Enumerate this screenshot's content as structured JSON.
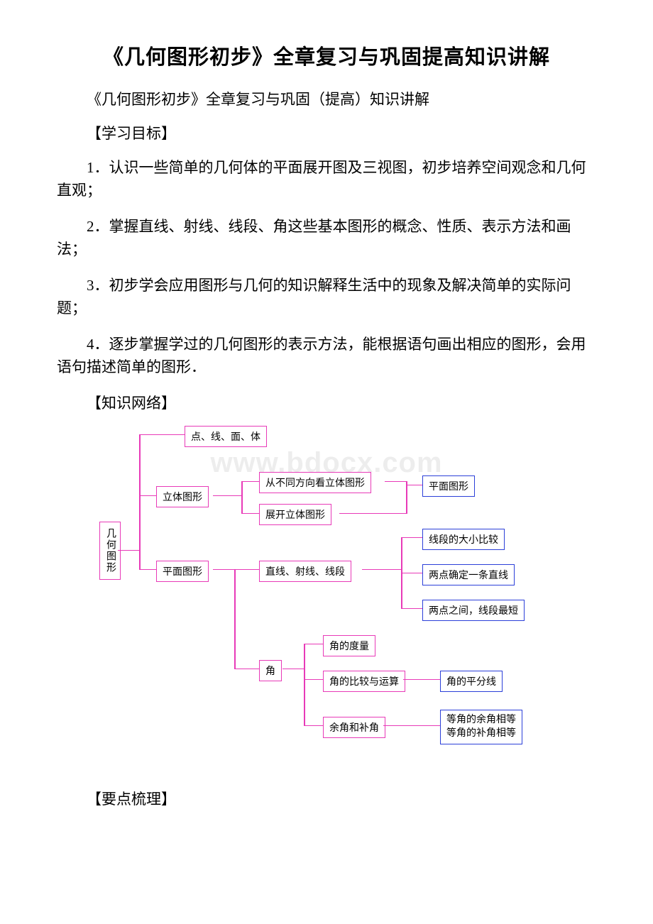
{
  "title": "《几何图形初步》全章复习与巩固提高知识讲解",
  "subtitle": "《几何图形初步》全章复习与巩固（提高）知识讲解",
  "section_objectives_heading": "【学习目标】",
  "objectives": [
    "1．认识一些简单的几何体的平面展开图及三视图，初步培养空间观念和几何直观；",
    "2．掌握直线、射线、线段、角这些基本图形的概念、性质、表示方法和画法；",
    "3．初步学会应用图形与几何的知识解释生活中的现象及解决简单的实际问题；",
    "4．逐步掌握学过的几何图形的表示方法，能根据语句画出相应的图形，会用语句描述简单的图形．"
  ],
  "section_network_heading": "【知识网络】",
  "section_points_heading": "【要点梳理】",
  "watermark_text": "www.bdocx.com",
  "diagram": {
    "colors": {
      "magenta": "#e83ab8",
      "blue": "#2b3fd9",
      "line": "#e83ab8"
    },
    "nodes": {
      "root": {
        "label": "几何图形",
        "vertical": true,
        "color": "magenta"
      },
      "n1": {
        "label": "点、线、面、体",
        "color": "magenta"
      },
      "n2": {
        "label": "立体图形",
        "color": "magenta"
      },
      "n3": {
        "label": "平面图形",
        "color": "magenta"
      },
      "n4": {
        "label": "角",
        "color": "magenta"
      },
      "n2a": {
        "label": "从不同方向看立体图形",
        "color": "magenta"
      },
      "n2b": {
        "label": "展开立体图形",
        "color": "magenta"
      },
      "n2r": {
        "label": "平面图形",
        "color": "blue"
      },
      "n3a": {
        "label": "直线、射线、线段",
        "color": "magenta"
      },
      "n3r1": {
        "label": "线段的大小比较",
        "color": "blue"
      },
      "n3r2": {
        "label": "两点确定一条直线",
        "color": "blue"
      },
      "n3r3": {
        "label": "两点之间，线段最短",
        "color": "blue"
      },
      "n4a": {
        "label": "角的度量",
        "color": "magenta"
      },
      "n4b": {
        "label": "角的比较与运算",
        "color": "magenta"
      },
      "n4c": {
        "label": "余角和补角",
        "color": "magenta"
      },
      "n4br": {
        "label": "角的平分线",
        "color": "blue"
      },
      "n4cr": {
        "label": "等角的余角相等\n等角的补角相等",
        "color": "blue"
      }
    }
  }
}
